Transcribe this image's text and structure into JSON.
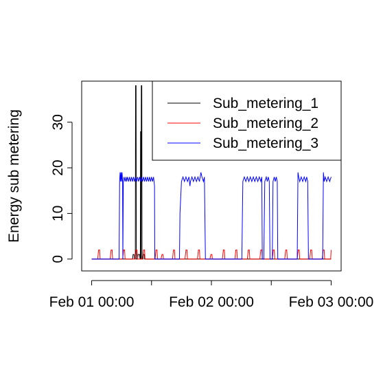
{
  "chart_data": {
    "type": "line",
    "title": "",
    "xlabel": "",
    "ylabel": "Energy sub metering",
    "xlim_hours": [
      -2,
      50
    ],
    "ylim": [
      -2.6,
      39
    ],
    "x_ticks": [
      {
        "hours": 0,
        "label": "Feb 01 00:00"
      },
      {
        "hours": 24,
        "label": "Feb 02 00:00"
      },
      {
        "hours": 48,
        "label": "Feb 03 00:00"
      }
    ],
    "y_ticks": [
      0,
      10,
      20,
      30
    ],
    "legend": {
      "position": "top-right"
    },
    "series": [
      {
        "name": "Sub_metering_1",
        "color": "#000000",
        "points": [
          [
            0,
            0
          ],
          [
            8.2,
            0
          ],
          [
            8.3,
            1
          ],
          [
            8.5,
            1
          ],
          [
            8.6,
            0
          ],
          [
            8.75,
            0
          ],
          [
            8.8,
            38
          ],
          [
            8.9,
            38
          ],
          [
            8.95,
            0
          ],
          [
            9.2,
            0
          ],
          [
            9.3,
            1
          ],
          [
            9.6,
            1
          ],
          [
            9.7,
            0
          ],
          [
            9.75,
            0
          ],
          [
            9.8,
            28
          ],
          [
            9.85,
            0
          ],
          [
            9.9,
            0
          ],
          [
            9.95,
            38
          ],
          [
            10.05,
            38
          ],
          [
            10.1,
            0
          ],
          [
            10.3,
            0
          ],
          [
            10.35,
            1
          ],
          [
            10.55,
            1
          ],
          [
            10.6,
            0
          ],
          [
            48,
            0
          ]
        ]
      },
      {
        "name": "Sub_metering_2",
        "color": "#ff0000",
        "points": [
          [
            0,
            0
          ],
          [
            1.2,
            0
          ],
          [
            1.4,
            2
          ],
          [
            1.6,
            2
          ],
          [
            1.7,
            0
          ],
          [
            3.7,
            0
          ],
          [
            3.9,
            2
          ],
          [
            4.1,
            2
          ],
          [
            4.2,
            0
          ],
          [
            6.2,
            0
          ],
          [
            6.4,
            2
          ],
          [
            6.6,
            2
          ],
          [
            6.7,
            0
          ],
          [
            8.7,
            0
          ],
          [
            8.9,
            2
          ],
          [
            9.1,
            2
          ],
          [
            9.2,
            0
          ],
          [
            10.2,
            0
          ],
          [
            10.4,
            2
          ],
          [
            10.6,
            2
          ],
          [
            10.7,
            0
          ],
          [
            12.7,
            0
          ],
          [
            12.9,
            2
          ],
          [
            13.1,
            2
          ],
          [
            13.2,
            0
          ],
          [
            13.9,
            0
          ],
          [
            14.1,
            1
          ],
          [
            14.3,
            1
          ],
          [
            14.4,
            0
          ],
          [
            16.2,
            0
          ],
          [
            16.4,
            2
          ],
          [
            16.6,
            2
          ],
          [
            16.7,
            0
          ],
          [
            18.7,
            0
          ],
          [
            18.9,
            2
          ],
          [
            19.1,
            2
          ],
          [
            19.2,
            0
          ],
          [
            21.2,
            0
          ],
          [
            21.4,
            2
          ],
          [
            21.6,
            2
          ],
          [
            21.7,
            0
          ],
          [
            23.7,
            0
          ],
          [
            23.9,
            1
          ],
          [
            24.1,
            1
          ],
          [
            24.2,
            0
          ],
          [
            26.2,
            0
          ],
          [
            26.4,
            2
          ],
          [
            26.6,
            2
          ],
          [
            26.7,
            0
          ],
          [
            28.7,
            0
          ],
          [
            28.9,
            2
          ],
          [
            29.1,
            2
          ],
          [
            29.2,
            0
          ],
          [
            31.2,
            0
          ],
          [
            31.4,
            2
          ],
          [
            31.6,
            2
          ],
          [
            31.7,
            0
          ],
          [
            33.7,
            0
          ],
          [
            33.9,
            2
          ],
          [
            34.1,
            2
          ],
          [
            34.2,
            0
          ],
          [
            36.2,
            0
          ],
          [
            36.4,
            2
          ],
          [
            36.6,
            2
          ],
          [
            36.7,
            0
          ],
          [
            38.7,
            0
          ],
          [
            38.9,
            2
          ],
          [
            39.1,
            2
          ],
          [
            39.2,
            0
          ],
          [
            41.2,
            0
          ],
          [
            41.4,
            2
          ],
          [
            41.6,
            2
          ],
          [
            41.7,
            0
          ],
          [
            43.7,
            0
          ],
          [
            43.9,
            2
          ],
          [
            44.1,
            2
          ],
          [
            44.2,
            0
          ],
          [
            46.2,
            0
          ],
          [
            46.4,
            2
          ],
          [
            46.6,
            2
          ],
          [
            46.7,
            0
          ],
          [
            47.9,
            0
          ],
          [
            48.0,
            2
          ]
        ]
      },
      {
        "name": "Sub_metering_3",
        "color": "#0000ff",
        "points": [
          [
            0,
            0
          ],
          [
            5.5,
            0
          ],
          [
            5.6,
            17
          ],
          [
            5.7,
            19
          ],
          [
            5.8,
            17
          ],
          [
            5.9,
            19
          ],
          [
            6.0,
            17
          ],
          [
            6.1,
            19
          ],
          [
            6.2,
            17
          ],
          [
            6.25,
            0
          ],
          [
            6.35,
            17
          ],
          [
            6.5,
            18
          ],
          [
            6.7,
            17
          ],
          [
            6.9,
            18
          ],
          [
            7.0,
            17
          ],
          [
            7.2,
            18
          ],
          [
            7.4,
            17
          ],
          [
            7.6,
            18
          ],
          [
            7.8,
            17
          ],
          [
            8.0,
            18
          ],
          [
            8.2,
            17
          ],
          [
            8.4,
            18
          ],
          [
            8.6,
            17
          ],
          [
            8.8,
            18
          ],
          [
            9.0,
            17
          ],
          [
            9.2,
            18
          ],
          [
            9.4,
            17
          ],
          [
            9.6,
            18
          ],
          [
            9.8,
            17
          ],
          [
            10.0,
            18
          ],
          [
            10.2,
            17
          ],
          [
            10.4,
            18
          ],
          [
            10.6,
            17
          ],
          [
            10.8,
            18
          ],
          [
            11.0,
            17
          ],
          [
            11.2,
            18
          ],
          [
            11.4,
            17
          ],
          [
            11.6,
            18
          ],
          [
            11.8,
            17
          ],
          [
            12.0,
            18
          ],
          [
            12.2,
            17
          ],
          [
            12.4,
            18
          ],
          [
            12.5,
            17
          ],
          [
            12.6,
            16
          ],
          [
            12.65,
            0
          ],
          [
            17.6,
            0
          ],
          [
            17.7,
            10
          ],
          [
            18.0,
            17
          ],
          [
            18.3,
            18
          ],
          [
            18.6,
            17
          ],
          [
            18.9,
            18
          ],
          [
            19.2,
            17
          ],
          [
            19.5,
            18
          ],
          [
            19.7,
            16
          ],
          [
            19.8,
            17
          ],
          [
            20.1,
            18
          ],
          [
            20.4,
            17
          ],
          [
            20.7,
            18
          ],
          [
            21.0,
            17
          ],
          [
            21.3,
            18
          ],
          [
            21.6,
            17
          ],
          [
            21.9,
            19
          ],
          [
            22.1,
            18
          ],
          [
            22.4,
            17
          ],
          [
            22.6,
            18
          ],
          [
            22.8,
            0
          ],
          [
            30.1,
            0
          ],
          [
            30.3,
            17
          ],
          [
            30.6,
            18
          ],
          [
            30.9,
            17
          ],
          [
            31.2,
            18
          ],
          [
            31.5,
            17
          ],
          [
            31.8,
            18
          ],
          [
            32.1,
            17
          ],
          [
            32.4,
            18
          ],
          [
            32.7,
            17
          ],
          [
            33.0,
            18
          ],
          [
            33.3,
            17
          ],
          [
            33.6,
            18
          ],
          [
            33.9,
            17
          ],
          [
            34.1,
            18
          ],
          [
            34.2,
            0
          ],
          [
            34.5,
            0
          ],
          [
            34.7,
            17
          ],
          [
            35.0,
            18
          ],
          [
            35.2,
            17
          ],
          [
            35.4,
            18
          ],
          [
            35.6,
            17
          ],
          [
            35.75,
            0
          ],
          [
            36.2,
            0
          ],
          [
            36.35,
            17
          ],
          [
            36.6,
            18
          ],
          [
            36.8,
            17
          ],
          [
            37.0,
            18
          ],
          [
            37.2,
            17
          ],
          [
            37.3,
            0
          ],
          [
            41.2,
            0
          ],
          [
            41.35,
            19
          ],
          [
            41.5,
            18
          ],
          [
            41.7,
            17
          ],
          [
            42.0,
            18
          ],
          [
            42.3,
            17
          ],
          [
            42.6,
            18
          ],
          [
            42.9,
            17
          ],
          [
            43.1,
            18
          ],
          [
            43.3,
            17
          ],
          [
            43.45,
            0
          ],
          [
            46.3,
            0
          ],
          [
            46.45,
            19
          ],
          [
            46.6,
            17
          ],
          [
            46.8,
            18
          ],
          [
            47.1,
            17
          ],
          [
            47.4,
            18
          ],
          [
            47.7,
            17
          ],
          [
            48.0,
            18
          ]
        ]
      }
    ]
  }
}
